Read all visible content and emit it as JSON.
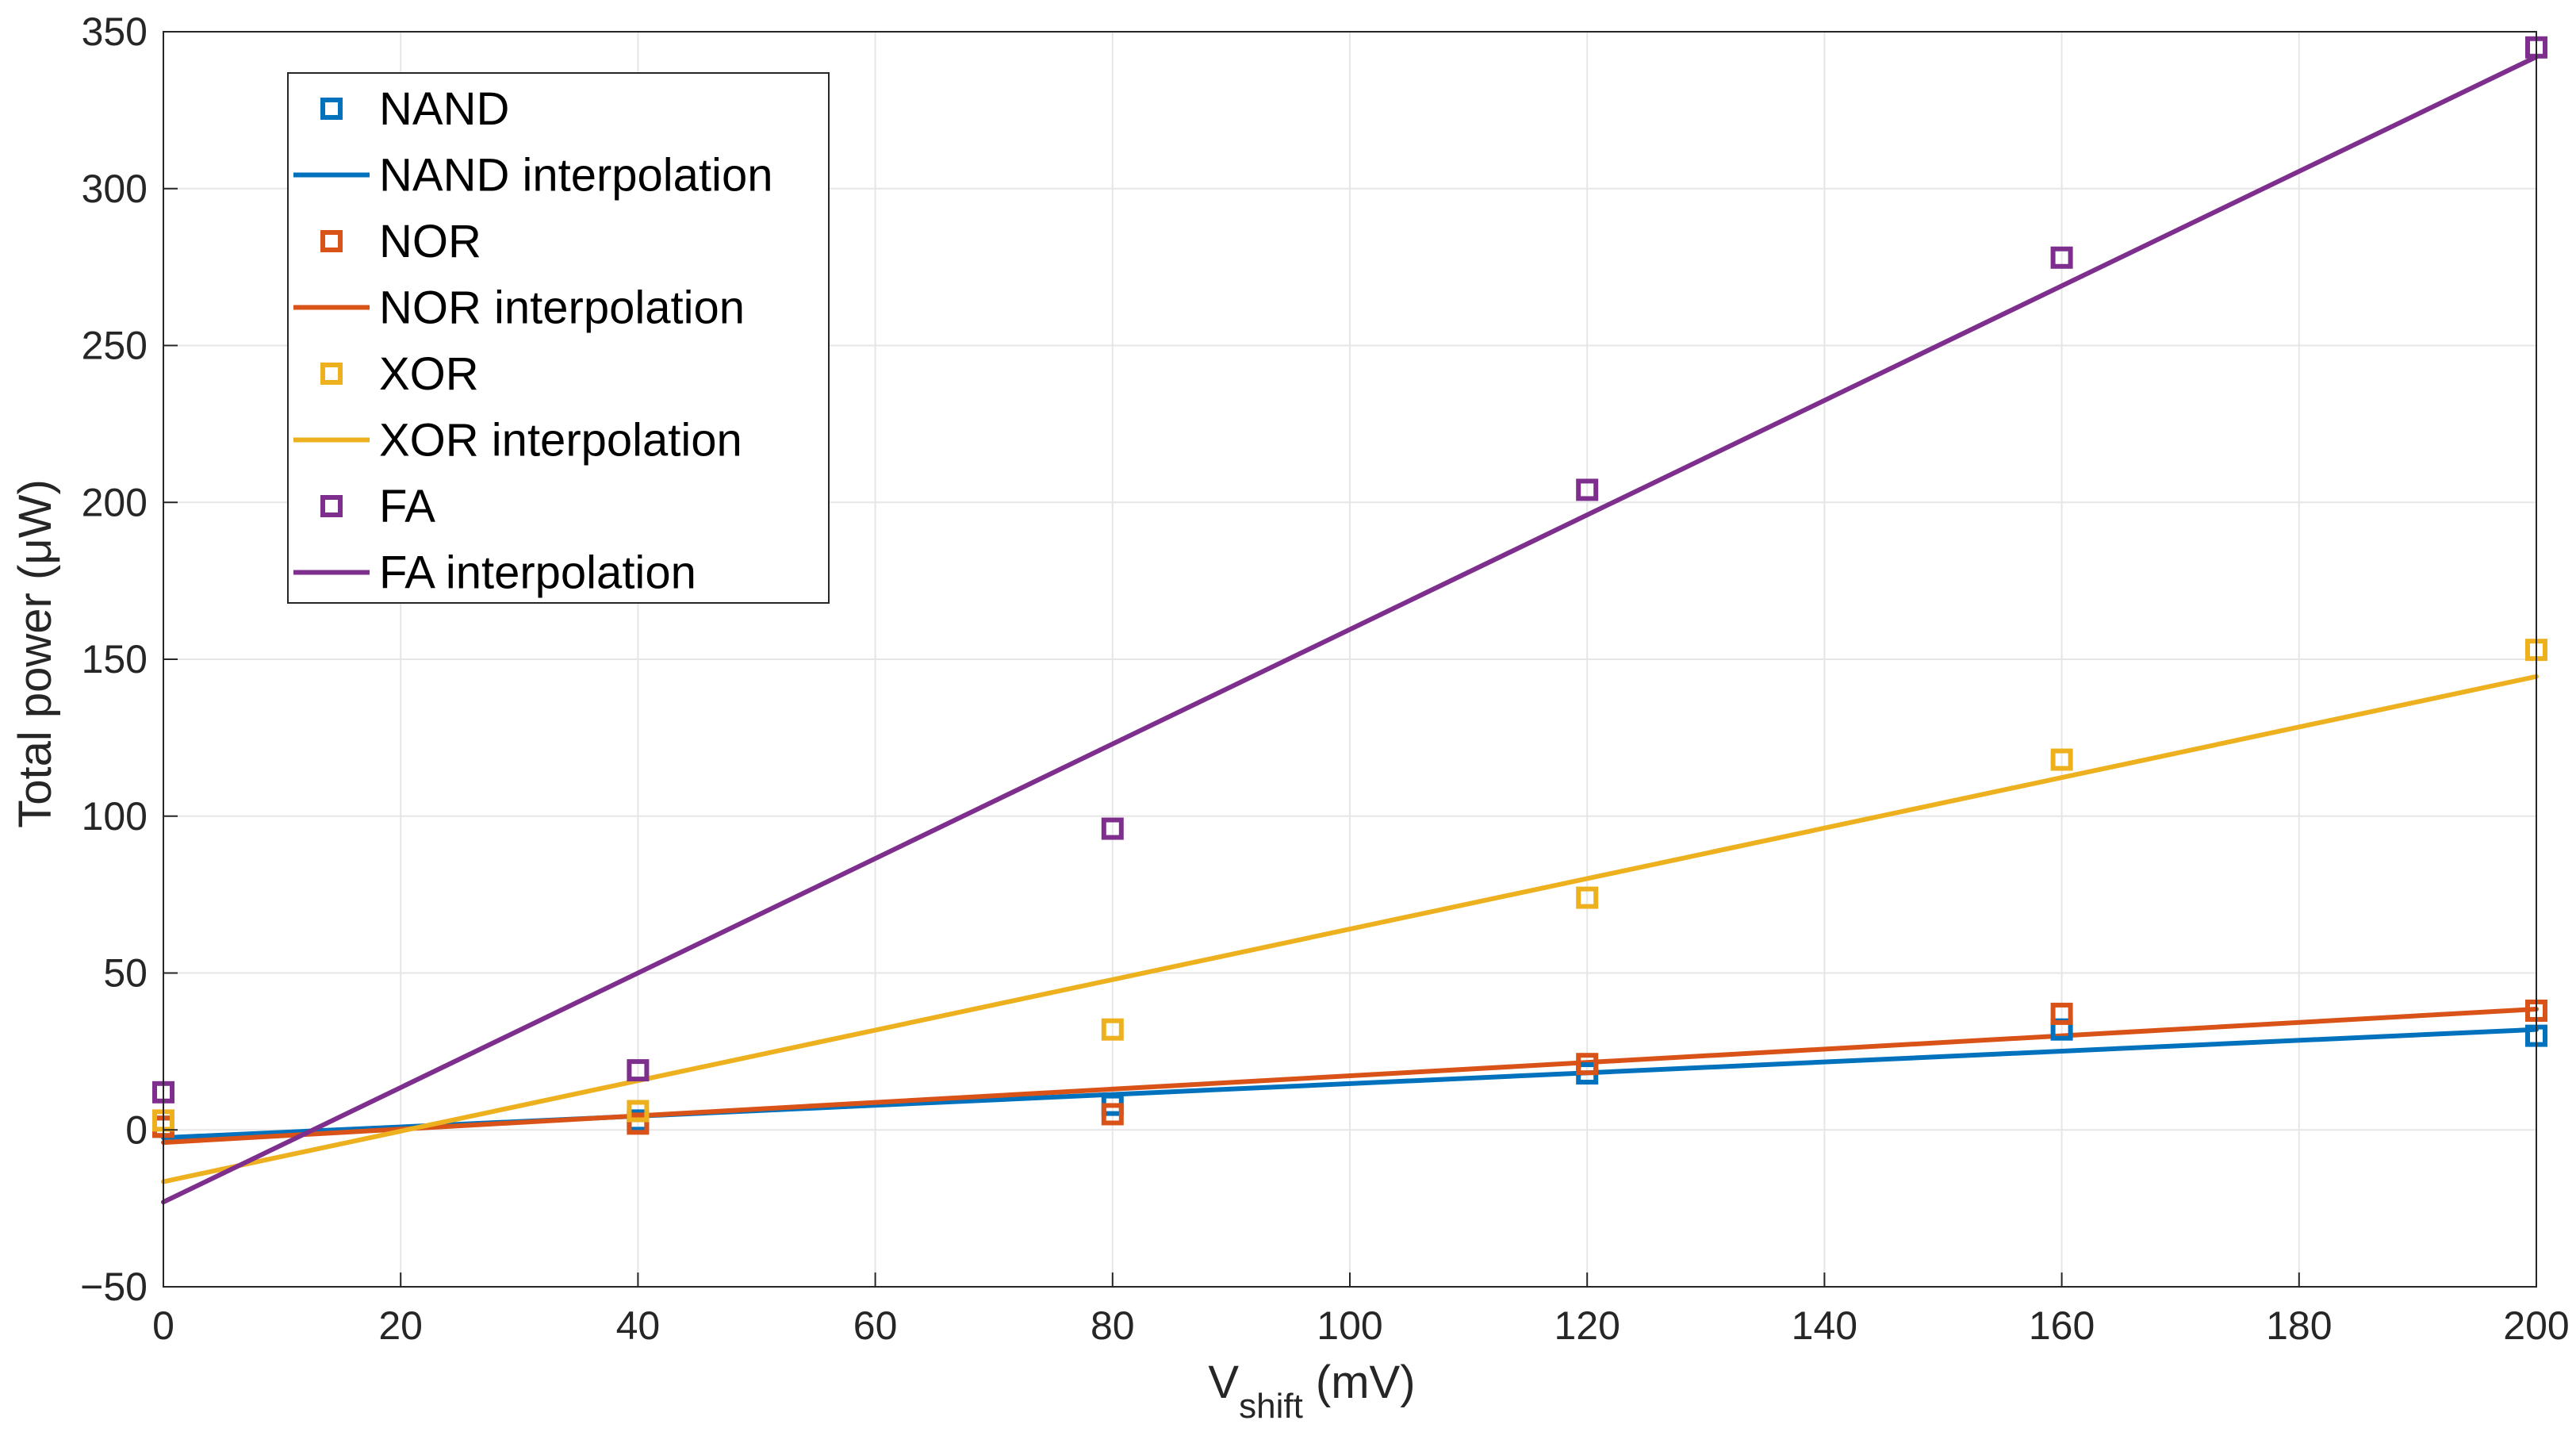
{
  "chart_data": {
    "type": "scatter",
    "title": "",
    "xlabel": {
      "main": "V",
      "subscript": "shift",
      "suffix": " (mV)"
    },
    "ylabel": "Total power (μW)",
    "xlim": [
      0,
      200
    ],
    "ylim": [
      -50,
      350
    ],
    "x_ticks": [
      0,
      20,
      40,
      60,
      80,
      100,
      120,
      140,
      160,
      180,
      200
    ],
    "y_ticks": [
      -50,
      0,
      50,
      100,
      150,
      200,
      250,
      300,
      350
    ],
    "y_tick_labels": [
      "−50",
      "0",
      "50",
      "100",
      "150",
      "200",
      "250",
      "300",
      "350"
    ],
    "grid": true,
    "legend_position": "top-left",
    "series": [
      {
        "name": "NAND",
        "interpolation_name": "NAND interpolation",
        "color": "#0072BD",
        "x": [
          0,
          40,
          80,
          120,
          160,
          200
        ],
        "values": [
          1,
          3,
          8,
          18,
          32,
          30
        ],
        "fit": [
          -2.5,
          32
        ]
      },
      {
        "name": "NOR",
        "interpolation_name": "NOR interpolation",
        "color": "#D95319",
        "x": [
          0,
          40,
          80,
          120,
          160,
          200
        ],
        "values": [
          1,
          2,
          5,
          21,
          37,
          38
        ],
        "fit": [
          -4,
          38.5
        ]
      },
      {
        "name": "XOR",
        "interpolation_name": "XOR interpolation",
        "color": "#EDB120",
        "x": [
          0,
          40,
          80,
          120,
          160,
          200
        ],
        "values": [
          3,
          6,
          32,
          74,
          118,
          153
        ],
        "fit": [
          -16.5,
          144.5
        ]
      },
      {
        "name": "FA",
        "interpolation_name": "FA interpolation",
        "color": "#7E2F8E",
        "x": [
          0,
          40,
          80,
          120,
          160,
          200
        ],
        "values": [
          12,
          19,
          96,
          204,
          278,
          345
        ],
        "fit": [
          -23,
          342
        ]
      }
    ]
  }
}
